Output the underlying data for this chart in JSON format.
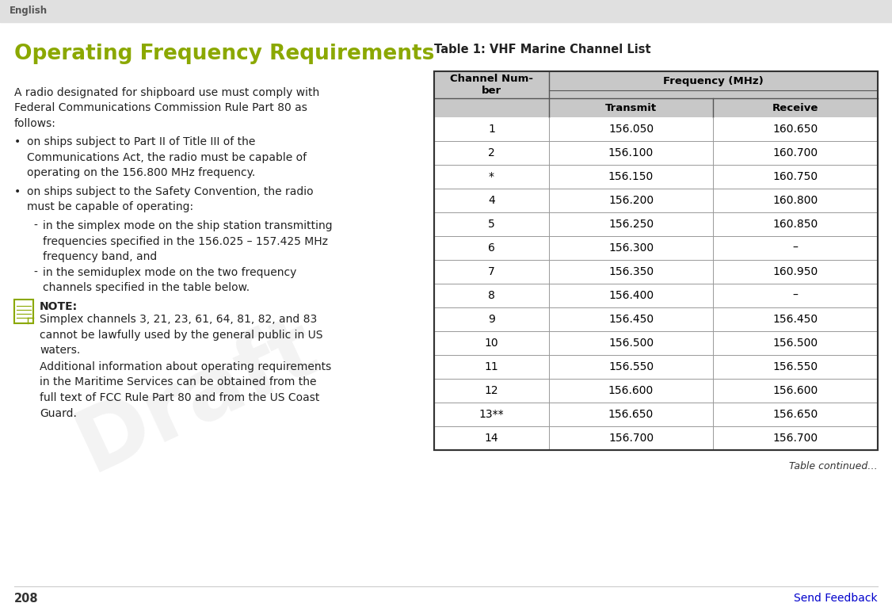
{
  "page_bg": "#ffffff",
  "header_bg": "#e0e0e0",
  "header_text": "English",
  "header_text_color": "#555555",
  "title_color": "#8ba800",
  "title_text": "Operating Frequency Requirements",
  "title_fontsize": 19,
  "body_text_color": "#222222",
  "table_title": "Table 1: VHF Marine Channel List",
  "table_header_bg": "#c8c8c8",
  "table_rows": [
    [
      "1",
      "156.050",
      "160.650"
    ],
    [
      "2",
      "156.100",
      "160.700"
    ],
    [
      "*",
      "156.150",
      "160.750"
    ],
    [
      "4",
      "156.200",
      "160.800"
    ],
    [
      "5",
      "156.250",
      "160.850"
    ],
    [
      "6",
      "156.300",
      "–"
    ],
    [
      "7",
      "156.350",
      "160.950"
    ],
    [
      "8",
      "156.400",
      "–"
    ],
    [
      "9",
      "156.450",
      "156.450"
    ],
    [
      "10",
      "156.500",
      "156.500"
    ],
    [
      "11",
      "156.550",
      "156.550"
    ],
    [
      "12",
      "156.600",
      "156.600"
    ],
    [
      "13**",
      "156.650",
      "156.650"
    ],
    [
      "14",
      "156.700",
      "156.700"
    ]
  ],
  "table_continued": "Table continued…",
  "footer_page": "208",
  "footer_link": "Send Feedback",
  "footer_link_color": "#0000cc",
  "draft_watermark": "Draft",
  "note_icon_color": "#8ba800"
}
